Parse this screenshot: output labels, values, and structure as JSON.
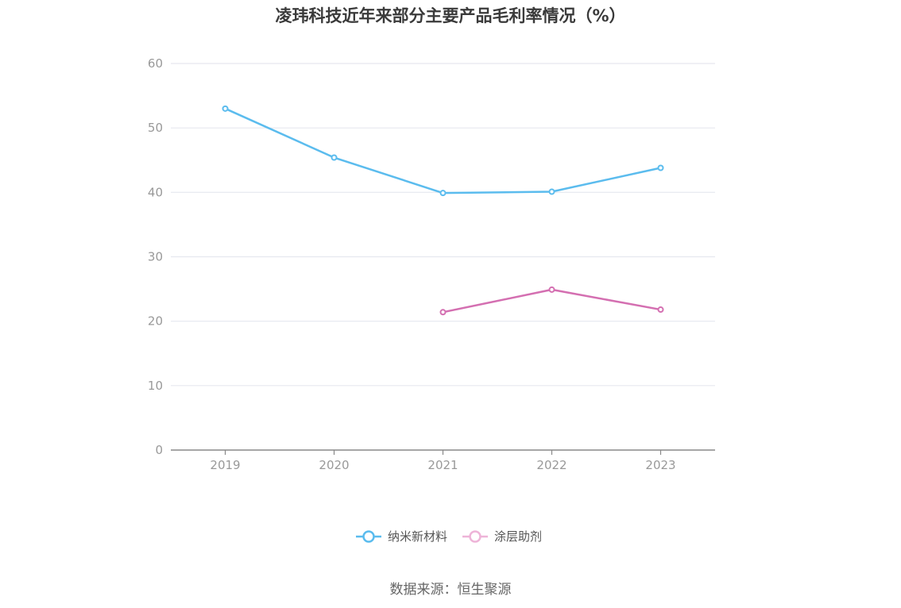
{
  "chart_data": {
    "type": "line",
    "title": "凌玮科技近年来部分主要产品毛利率情况（%）",
    "categories": [
      "2019",
      "2020",
      "2021",
      "2022",
      "2023"
    ],
    "series": [
      {
        "name": "纳米新材料",
        "color": "#5bbcee",
        "values": [
          53.0,
          45.4,
          39.9,
          40.1,
          43.8
        ]
      },
      {
        "name": "涂层助剂",
        "color": "#d46fb1",
        "values": [
          null,
          null,
          21.4,
          24.9,
          21.8
        ]
      }
    ],
    "ylim": [
      0,
      60
    ],
    "yticks": [
      0,
      10,
      20,
      30,
      40,
      50,
      60
    ],
    "grid": true,
    "legend_position": "bottom"
  },
  "source": "数据来源：恒生聚源"
}
